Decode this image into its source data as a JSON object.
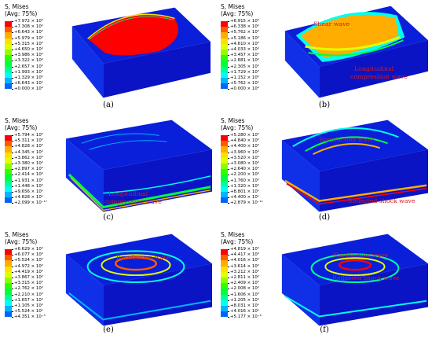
{
  "colors": [
    "#ff0000",
    "#ff5a00",
    "#ffad00",
    "#ffe000",
    "#e2ff00",
    "#8bff00",
    "#2fff00",
    "#00ff3e",
    "#00ff9a",
    "#00fff0",
    "#00b6ff",
    "#0065ff",
    "#0000ff"
  ],
  "panels": [
    {
      "id": "a",
      "caption": "(a)",
      "legend_title": "S, Mises",
      "legend_avg": "(Avg: 75%)",
      "values": [
        "+7.972 × 10²",
        "+7.308 × 10²",
        "+6.643 × 10²",
        "+5.979 × 10²",
        "+5.315 × 10²",
        "+4.650 × 10²",
        "+3.986 × 10²",
        "+3.322 × 10²",
        "+2.657 × 10²",
        "+1.993 × 10²",
        "+1.329 × 10²",
        "+6.643 × 10¹",
        "+0.000 × 10⁰"
      ],
      "annotations": []
    },
    {
      "id": "b",
      "caption": "(b)",
      "legend_title": "S, Mises",
      "legend_avg": "(Avg: 75%)",
      "values": [
        "+6.915 × 10²",
        "+6.338 × 10²",
        "+5.762 × 10²",
        "+5.186 × 10²",
        "+4.610 × 10²",
        "+4.033 × 10²",
        "+3.457 × 10²",
        "+2.881 × 10²",
        "+2.305 × 10²",
        "+1.729 × 10²",
        "+1.152 × 10²",
        "+5.762 × 10¹",
        "+0.000 × 10⁰"
      ],
      "annotations": [
        "Shear wave",
        "Longitudinal",
        "compression wave"
      ]
    },
    {
      "id": "c",
      "caption": "(c)",
      "legend_title": "S, Mises",
      "legend_avg": "(Avg: 75%)",
      "values": [
        "+5.794 × 10²",
        "+5.311 × 10²",
        "+4.828 × 10²",
        "+4.345 × 10²",
        "+3.862 × 10²",
        "+3.380 × 10²",
        "+2.897 × 10²",
        "+2.414 × 10²",
        "+1.931 × 10²",
        "+1.448 × 10²",
        "+9.656 × 10¹",
        "+4.828 × 10¹",
        "+2.099 × 10⁻¹⁷"
      ],
      "annotations": [
        "Longitudinal",
        "compression wave"
      ]
    },
    {
      "id": "d",
      "caption": "(d)",
      "legend_title": "S, Mises",
      "legend_avg": "(Avg: 75%)",
      "values": [
        "+5.280 × 10²",
        "+4.840 × 10²",
        "+4.400 × 10²",
        "+3.960 × 10²",
        "+3.520 × 10²",
        "+3.080 × 10²",
        "+2.640 × 10²",
        "+2.200 × 10²",
        "+1.760 × 10²",
        "+1.320 × 10²",
        "+8.801 × 10¹",
        "+4.400 × 10¹",
        "+2.879 × 10⁻¹¹"
      ],
      "annotations": [
        "Rarefaction wave",
        "Reflected shock wave"
      ]
    },
    {
      "id": "e",
      "caption": "(e)",
      "legend_title": "S, Mises",
      "legend_avg": "(Avg: 75%)",
      "values": [
        "+6.629 × 10²",
        "+6.077 × 10²",
        "+5.524 × 10²",
        "+4.972 × 10²",
        "+4.419 × 10²",
        "+3.867 × 10²",
        "+3.315 × 10²",
        "+2.762 × 10²",
        "+2.210 × 10²",
        "+1.657 × 10²",
        "+1.105 × 10²",
        "+5.524 × 10¹",
        "+4.351 × 10⁻⁵"
      ],
      "annotations": [
        "Rarefaction wave"
      ]
    },
    {
      "id": "f",
      "caption": "(f)",
      "legend_title": "S, Mises",
      "legend_avg": "(Avg: 75%)",
      "values": [
        "+4.819 × 10²",
        "+4.417 × 10²",
        "+4.016 × 10²",
        "+3.614 × 10²",
        "+3.212 × 10²",
        "+2.811 × 10²",
        "+2.409 × 10²",
        "+2.008 × 10²",
        "+1.606 × 10²",
        "+1.205 × 10²",
        "+8.031 × 10¹",
        "+4.016 × 10¹",
        "+5.177 × 10⁻⁶"
      ],
      "annotations": [
        "Rarefaction wave",
        "Reflected shock wave"
      ]
    }
  ]
}
